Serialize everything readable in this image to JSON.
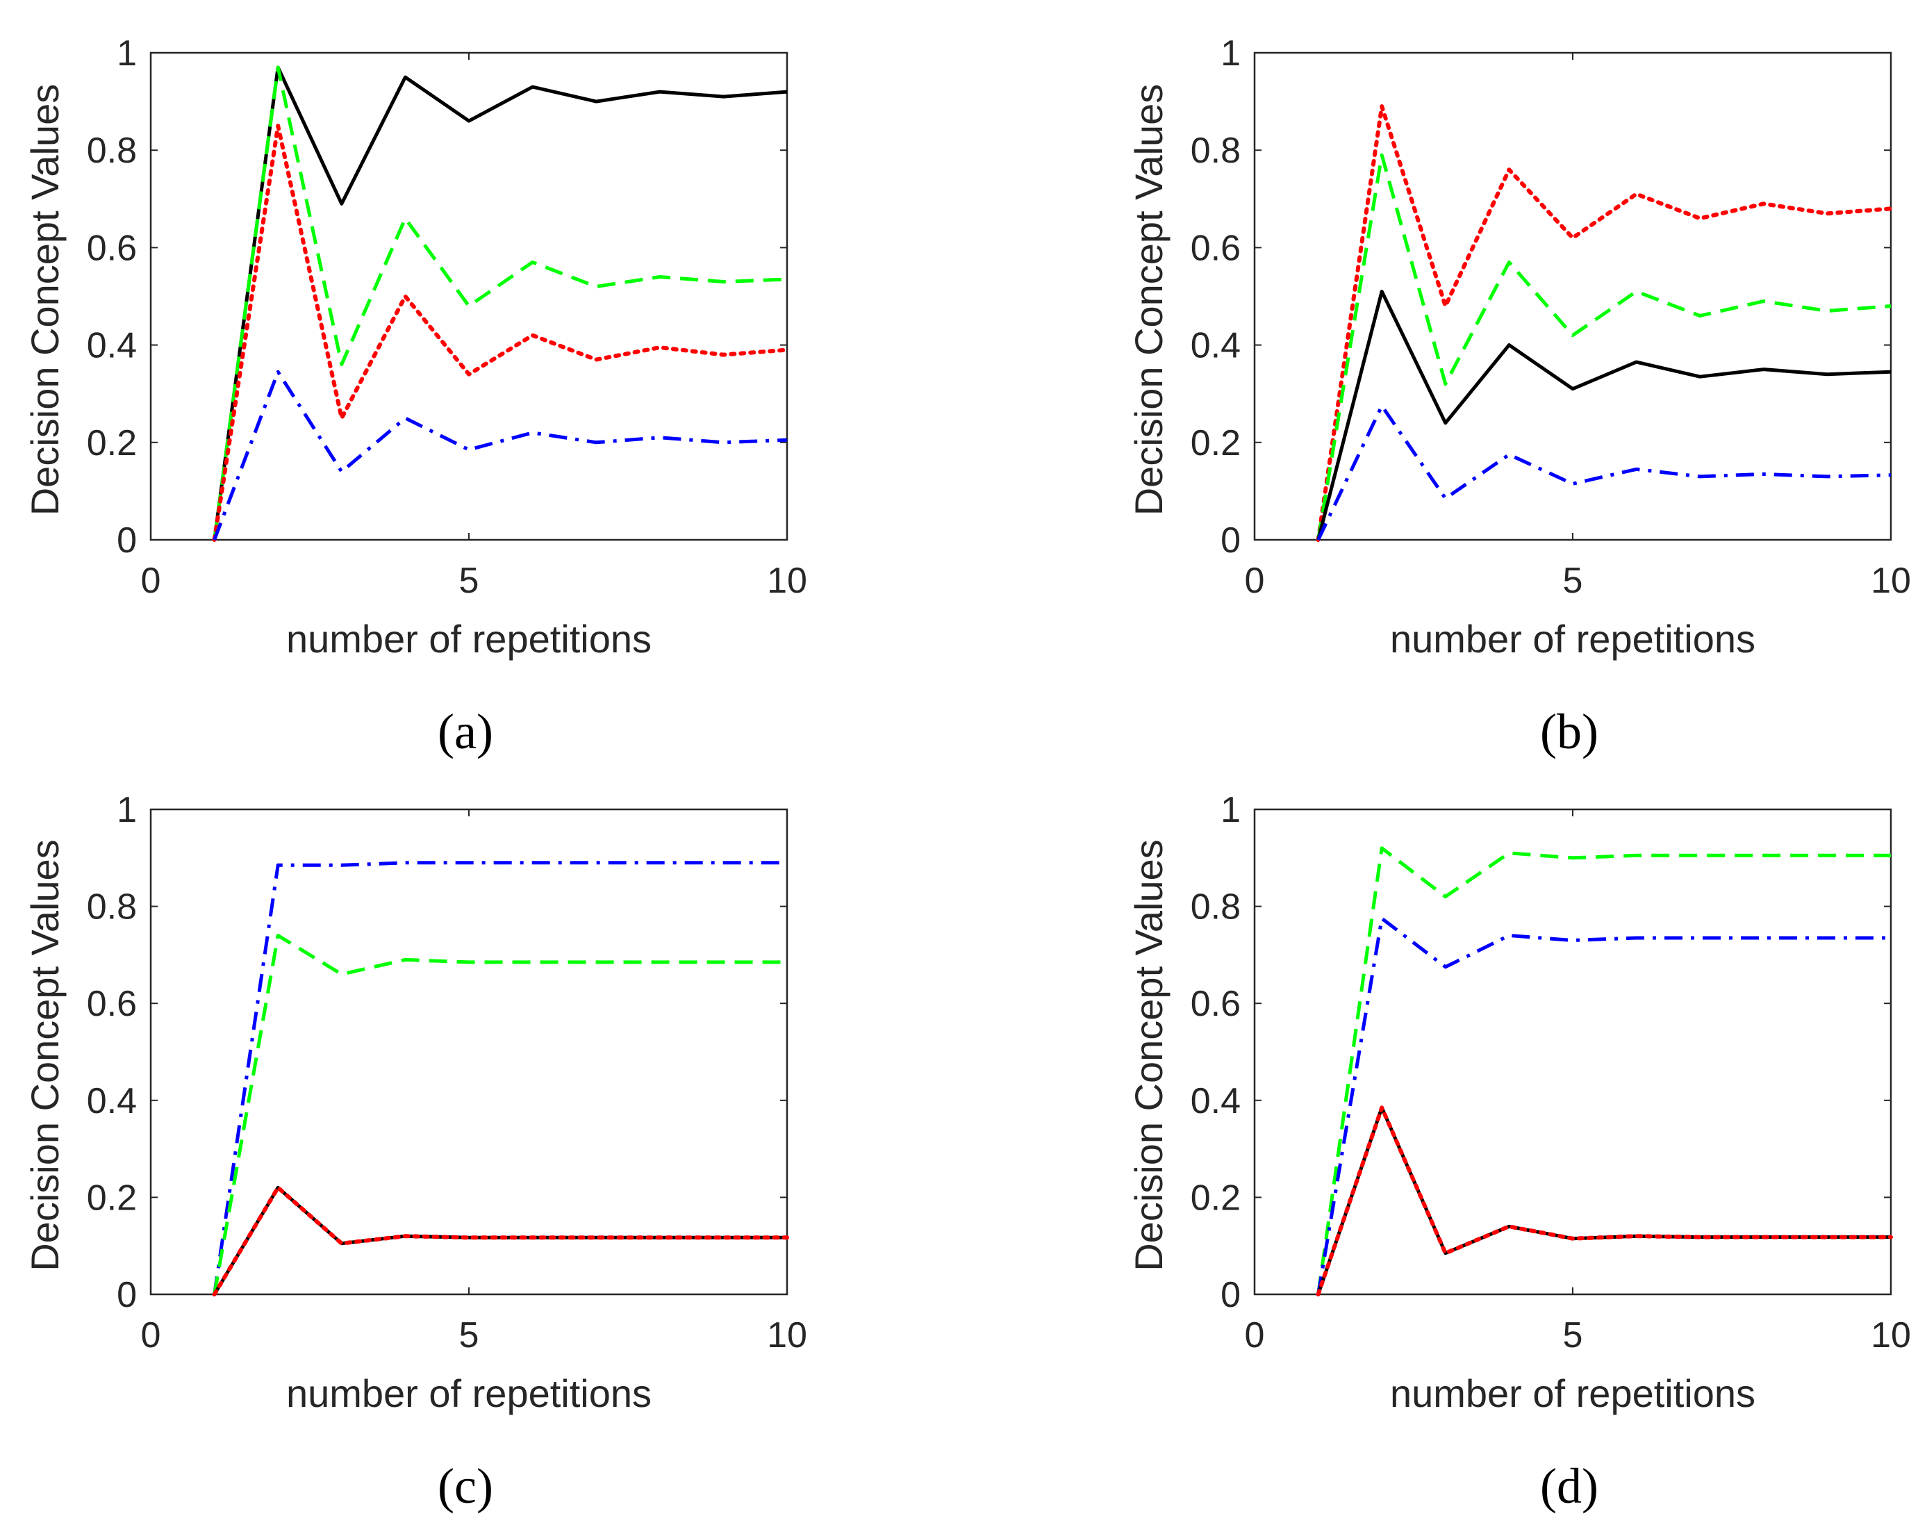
{
  "chart_data": [
    {
      "type": "line",
      "caption_letter": "b_a",
      "caption": "(a)",
      "xlabel": "number of repetitions",
      "ylabel": "Decision Concept Values",
      "xlim": [
        0,
        10
      ],
      "ylim": [
        0,
        1
      ],
      "xticks": [
        "0",
        "5",
        "10"
      ],
      "yticks": [
        "0",
        "0.2",
        "0.4",
        "0.6",
        "0.8",
        "1"
      ],
      "x": [
        1,
        2,
        3,
        4,
        5,
        6,
        7,
        8,
        9,
        10
      ],
      "series": [
        {
          "name": "black-solid",
          "color": "#000000",
          "style": "solid",
          "values": [
            0,
            0.97,
            0.69,
            0.95,
            0.86,
            0.93,
            0.9,
            0.92,
            0.91,
            0.92
          ]
        },
        {
          "name": "green-dashed",
          "color": "#00ff00",
          "style": "dashed",
          "values": [
            0,
            0.97,
            0.36,
            0.66,
            0.48,
            0.57,
            0.52,
            0.54,
            0.53,
            0.535
          ]
        },
        {
          "name": "red-dotted",
          "color": "#ff0000",
          "style": "dotted",
          "values": [
            0,
            0.85,
            0.25,
            0.5,
            0.34,
            0.42,
            0.37,
            0.395,
            0.38,
            0.39
          ]
        },
        {
          "name": "blue-dashdot",
          "color": "#0000ff",
          "style": "dashdot",
          "values": [
            0,
            0.345,
            0.14,
            0.25,
            0.185,
            0.22,
            0.2,
            0.21,
            0.2,
            0.205
          ]
        }
      ]
    },
    {
      "type": "line",
      "caption": "(b)",
      "xlabel": "number of repetitions",
      "ylabel": "Decision Concept Values",
      "xlim": [
        0,
        10
      ],
      "ylim": [
        0,
        1
      ],
      "xticks": [
        "0",
        "5",
        "10"
      ],
      "yticks": [
        "0",
        "0.2",
        "0.4",
        "0.6",
        "0.8",
        "1"
      ],
      "x": [
        1,
        2,
        3,
        4,
        5,
        6,
        7,
        8,
        9,
        10
      ],
      "series": [
        {
          "name": "red-dotted",
          "color": "#ff0000",
          "style": "dotted",
          "values": [
            0,
            0.89,
            0.48,
            0.76,
            0.62,
            0.71,
            0.66,
            0.69,
            0.67,
            0.68
          ]
        },
        {
          "name": "green-dashed",
          "color": "#00ff00",
          "style": "dashed",
          "values": [
            0,
            0.79,
            0.32,
            0.57,
            0.42,
            0.51,
            0.46,
            0.49,
            0.47,
            0.48
          ]
        },
        {
          "name": "black-solid",
          "color": "#000000",
          "style": "solid",
          "values": [
            0,
            0.51,
            0.24,
            0.4,
            0.31,
            0.365,
            0.335,
            0.35,
            0.34,
            0.345
          ]
        },
        {
          "name": "blue-dashdot",
          "color": "#0000ff",
          "style": "dashdot",
          "values": [
            0,
            0.275,
            0.085,
            0.175,
            0.115,
            0.145,
            0.13,
            0.135,
            0.13,
            0.133
          ]
        }
      ]
    },
    {
      "type": "line",
      "caption": "(c)",
      "xlabel": "number of repetitions",
      "ylabel": "Decision Concept Values",
      "xlim": [
        0,
        10
      ],
      "ylim": [
        0,
        1
      ],
      "xticks": [
        "0",
        "5",
        "10"
      ],
      "yticks": [
        "0",
        "0.2",
        "0.4",
        "0.6",
        "0.8",
        "1"
      ],
      "x": [
        1,
        2,
        3,
        4,
        5,
        6,
        7,
        8,
        9,
        10
      ],
      "series": [
        {
          "name": "blue-dashdot",
          "color": "#0000ff",
          "style": "dashdot",
          "values": [
            0,
            0.885,
            0.885,
            0.89,
            0.89,
            0.89,
            0.89,
            0.89,
            0.89,
            0.89
          ]
        },
        {
          "name": "green-dashed",
          "color": "#00ff00",
          "style": "dashed",
          "values": [
            0,
            0.74,
            0.66,
            0.69,
            0.685,
            0.685,
            0.685,
            0.685,
            0.685,
            0.685
          ]
        },
        {
          "name": "black-solid",
          "color": "#000000",
          "style": "solid",
          "values": [
            0,
            0.22,
            0.105,
            0.12,
            0.117,
            0.117,
            0.117,
            0.117,
            0.117,
            0.117
          ]
        },
        {
          "name": "red-dotted",
          "color": "#ff0000",
          "style": "dotted",
          "values": [
            0,
            0.22,
            0.105,
            0.12,
            0.117,
            0.117,
            0.117,
            0.117,
            0.117,
            0.117
          ]
        }
      ]
    },
    {
      "type": "line",
      "caption": "(d)",
      "xlabel": "number of repetitions",
      "ylabel": "Decision Concept Values",
      "xlim": [
        0,
        10
      ],
      "ylim": [
        0,
        1
      ],
      "xticks": [
        "0",
        "5",
        "10"
      ],
      "yticks": [
        "0",
        "0.2",
        "0.4",
        "0.6",
        "0.8",
        "1"
      ],
      "x": [
        1,
        2,
        3,
        4,
        5,
        6,
        7,
        8,
        9,
        10
      ],
      "series": [
        {
          "name": "green-dashed",
          "color": "#00ff00",
          "style": "dashed",
          "values": [
            0,
            0.92,
            0.82,
            0.91,
            0.9,
            0.905,
            0.905,
            0.905,
            0.905,
            0.905
          ]
        },
        {
          "name": "blue-dashdot",
          "color": "#0000ff",
          "style": "dashdot",
          "values": [
            0,
            0.775,
            0.675,
            0.74,
            0.73,
            0.735,
            0.735,
            0.735,
            0.735,
            0.735
          ]
        },
        {
          "name": "black-solid",
          "color": "#000000",
          "style": "solid",
          "values": [
            0,
            0.385,
            0.085,
            0.14,
            0.115,
            0.12,
            0.118,
            0.118,
            0.118,
            0.118
          ]
        },
        {
          "name": "red-dotted",
          "color": "#ff0000",
          "style": "dotted",
          "values": [
            0,
            0.385,
            0.085,
            0.14,
            0.115,
            0.12,
            0.118,
            0.118,
            0.118,
            0.118
          ]
        }
      ]
    }
  ]
}
